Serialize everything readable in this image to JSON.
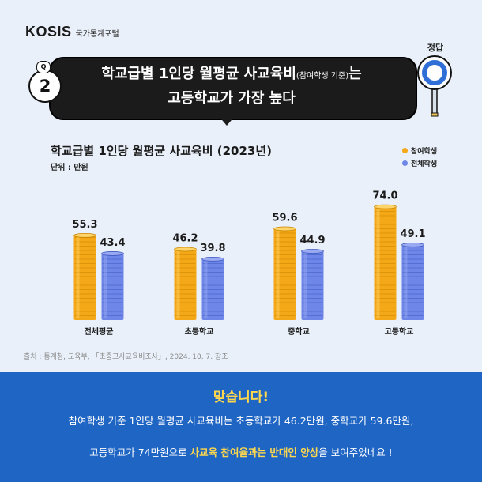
{
  "header": {
    "logo": "KOSIS",
    "portal": "국가통계포털"
  },
  "question": {
    "tag": "Q",
    "number": "2",
    "line1_main": "학교급별 1인당 월평균 사교육비",
    "line1_small": "(참여학생 기준)",
    "line1_end": "는",
    "line2": "고등학교가 가장 높다"
  },
  "answer_badge": {
    "label": "정답"
  },
  "chart_data": {
    "type": "bar",
    "title": "학교급별 1인당 월평균 사교육비 (2023년)",
    "unit": "단위 : 만원",
    "categories": [
      "전체평균",
      "초등학교",
      "중학교",
      "고등학교"
    ],
    "series": [
      {
        "name": "참여학생",
        "color": "#f4a817",
        "values": [
          55.3,
          46.2,
          59.6,
          74.0
        ],
        "labels": [
          "55.3",
          "46.2",
          "59.6",
          "74.0"
        ]
      },
      {
        "name": "전체학생",
        "color": "#6d86e8",
        "values": [
          43.4,
          39.8,
          44.9,
          49.1
        ],
        "labels": [
          "43.4",
          "39.8",
          "44.9",
          "49.1"
        ]
      }
    ],
    "ylim": [
      0,
      80
    ],
    "legend": "top-right",
    "grid": false
  },
  "source": "출처 : 통계청, 교육부, 「초중고사교육비조사」, 2024. 10. 7. 참조",
  "footer": {
    "title": "맞습니다!",
    "line1": "참여학생 기준 1인당 월평균 사교육비는 초등학교가 46.2만원, 중학교가 59.6만원,",
    "line2_pre": "고등학교가 74만원으로 ",
    "line2_highlight": "사교육 참여율과는 반대인 양상",
    "line2_post": "을 보여주었네요 !"
  }
}
